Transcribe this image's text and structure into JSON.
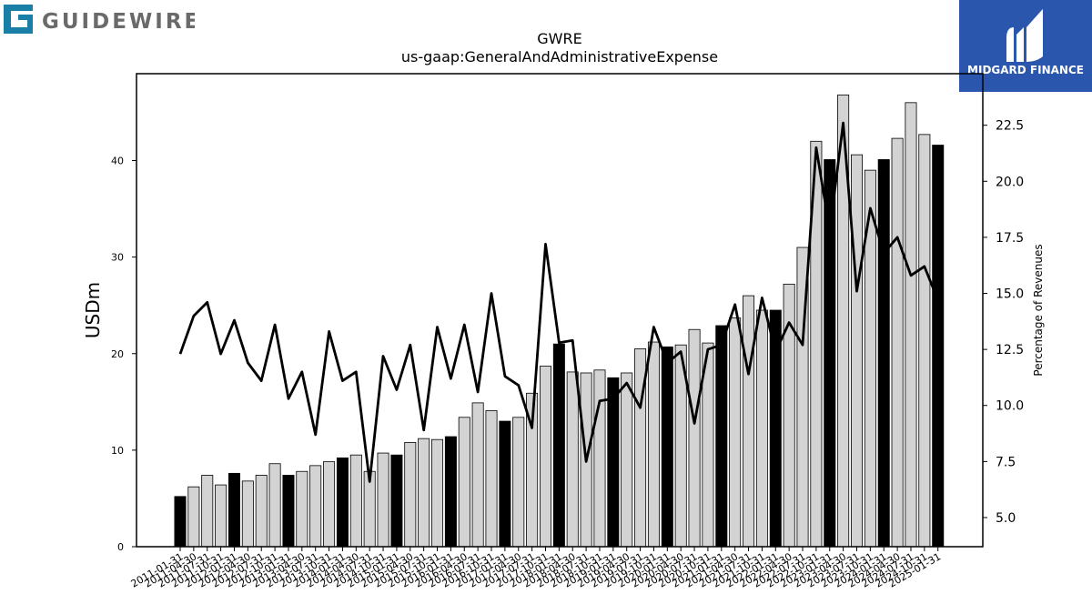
{
  "brand": {
    "left_logo_text": "GUIDEWIRE",
    "right_logo_text": "MIDGARD FINANCE",
    "left_logo_color": "#6a6a6a",
    "left_logo_accent": "#1a7fa6",
    "right_logo_bg": "#2b56ad"
  },
  "chart_data": {
    "type": "bar",
    "title": "GWRE",
    "subtitle": "us-gaap:GeneralAndAdministrativeExpense",
    "ylabel": "USDm",
    "y2label": "Percentage of Revenues",
    "ylim": [
      0,
      49
    ],
    "y2lim": [
      3.7,
      24.8
    ],
    "yticks": [
      0,
      10,
      20,
      30,
      40
    ],
    "y2ticks": [
      5.0,
      7.5,
      10.0,
      12.5,
      15.0,
      17.5,
      20.0,
      22.5
    ],
    "grid": false,
    "categories": [
      "2011-01-31",
      "2011-04-30",
      "2011-07-31",
      "2011-10-31",
      "2012-01-31",
      "2012-04-30",
      "2012-07-31",
      "2012-10-31",
      "2013-01-31",
      "2013-04-30",
      "2013-07-31",
      "2013-10-31",
      "2014-01-31",
      "2014-04-30",
      "2014-07-31",
      "2014-10-31",
      "2015-01-31",
      "2015-04-30",
      "2015-07-31",
      "2015-10-31",
      "2016-01-31",
      "2016-04-30",
      "2016-07-31",
      "2016-10-31",
      "2017-01-31",
      "2017-04-30",
      "2017-07-31",
      "2017-10-31",
      "2018-01-31",
      "2018-04-30",
      "2018-07-31",
      "2018-10-31",
      "2019-01-31",
      "2019-04-30",
      "2019-07-31",
      "2019-10-31",
      "2020-01-31",
      "2020-04-30",
      "2020-07-31",
      "2020-10-31",
      "2021-01-31",
      "2021-04-30",
      "2021-07-31",
      "2021-10-31",
      "2022-01-31",
      "2022-04-30",
      "2022-07-31",
      "2022-10-31",
      "2023-01-31",
      "2023-04-30",
      "2023-07-31",
      "2023-10-31",
      "2024-01-31",
      "2024-04-30",
      "2024-07-31",
      "2024-10-31",
      "2025-01-31"
    ],
    "series": [
      {
        "kind": "bar",
        "axis": "left",
        "values": [
          5.2,
          6.2,
          7.4,
          6.4,
          7.6,
          6.8,
          7.4,
          8.6,
          7.4,
          7.8,
          8.4,
          8.8,
          9.2,
          9.5,
          7.8,
          9.7,
          9.5,
          10.8,
          11.2,
          11.1,
          11.4,
          13.4,
          14.9,
          14.1,
          13.0,
          13.4,
          15.9,
          18.7,
          21.0,
          18.1,
          18.0,
          18.3,
          17.5,
          18.0,
          20.5,
          21.2,
          20.7,
          20.9,
          22.5,
          21.1,
          22.9,
          23.7,
          26.0,
          24.5,
          24.5,
          27.2,
          31.0,
          42.0,
          40.1,
          46.8,
          40.6,
          39.0,
          40.1,
          42.3,
          46.0,
          42.7,
          41.6
        ],
        "highlighted_fill": "#000000",
        "fill": "#d3d3d3",
        "highlighted": [
          0,
          4,
          8,
          12,
          16,
          20,
          24,
          28,
          32,
          36,
          40,
          44,
          48,
          52,
          56
        ]
      },
      {
        "kind": "line",
        "axis": "right",
        "color": "#000000",
        "values": [
          12.3,
          14.0,
          14.6,
          12.3,
          13.8,
          11.9,
          11.1,
          13.6,
          10.3,
          11.5,
          8.7,
          13.3,
          11.1,
          11.5,
          6.6,
          12.2,
          10.7,
          12.7,
          8.9,
          13.5,
          11.2,
          13.6,
          10.6,
          15.0,
          11.3,
          10.9,
          9.0,
          17.2,
          12.8,
          12.9,
          7.5,
          10.2,
          10.3,
          11.0,
          9.9,
          13.5,
          11.9,
          12.4,
          9.2,
          12.5,
          12.7,
          14.5,
          11.4,
          14.8,
          12.4,
          13.7,
          12.7,
          21.5,
          17.8,
          22.6,
          15.1,
          18.8,
          16.8,
          17.5,
          15.8,
          16.2,
          14.7
        ]
      }
    ]
  }
}
